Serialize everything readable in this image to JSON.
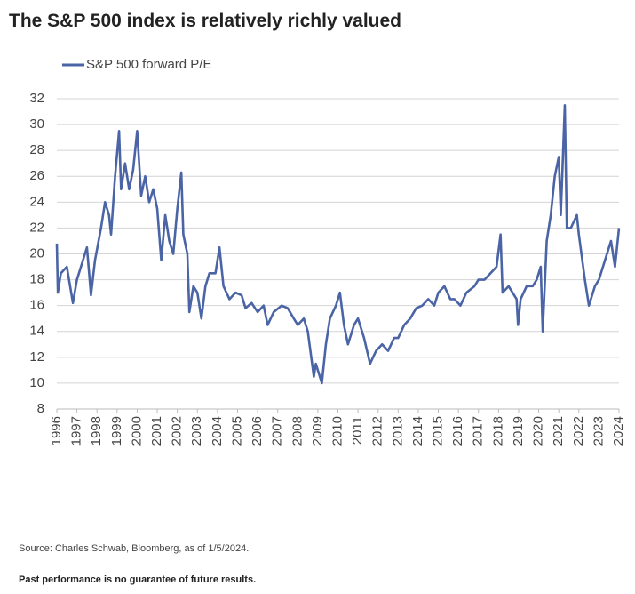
{
  "chart_data": {
    "type": "line",
    "title": "The S&P 500 index is relatively richly valued",
    "source": "Source: Charles Schwab, Bloomberg, as of 1/5/2024.",
    "footnote": "Past performance is no guarantee of future results.",
    "xlim": [
      1996,
      2024
    ],
    "xticks": [
      1996,
      1997,
      1998,
      1999,
      2000,
      2001,
      2002,
      2003,
      2004,
      2005,
      2006,
      2007,
      2008,
      2009,
      2010,
      2011,
      2012,
      2013,
      2014,
      2015,
      2016,
      2017,
      2018,
      2019,
      2020,
      2021,
      2022,
      2023,
      2024
    ],
    "ylim": [
      8,
      32
    ],
    "yticks": [
      8,
      10,
      12,
      14,
      16,
      18,
      20,
      22,
      24,
      26,
      28,
      30,
      32
    ],
    "grid": true,
    "legend": "top-left",
    "x": [
      1996.0,
      1996.05,
      1996.2,
      1996.5,
      1996.8,
      1997.0,
      1997.3,
      1997.5,
      1997.7,
      1997.9,
      1998.2,
      1998.4,
      1998.6,
      1998.7,
      1998.9,
      1999.1,
      1999.2,
      1999.4,
      1999.6,
      1999.8,
      2000.0,
      2000.2,
      2000.4,
      2000.6,
      2000.8,
      2001.0,
      2001.2,
      2001.4,
      2001.6,
      2001.8,
      2002.0,
      2002.2,
      2002.3,
      2002.5,
      2002.6,
      2002.8,
      2003.0,
      2003.2,
      2003.4,
      2003.6,
      2003.9,
      2004.1,
      2004.3,
      2004.6,
      2004.9,
      2005.2,
      2005.4,
      2005.7,
      2006.0,
      2006.3,
      2006.5,
      2006.8,
      2007.2,
      2007.5,
      2007.8,
      2008.0,
      2008.3,
      2008.5,
      2008.8,
      2008.9,
      2009.0,
      2009.2,
      2009.4,
      2009.6,
      2009.9,
      2010.1,
      2010.3,
      2010.5,
      2010.8,
      2011.0,
      2011.3,
      2011.6,
      2011.9,
      2012.2,
      2012.5,
      2012.8,
      2013.0,
      2013.3,
      2013.6,
      2013.9,
      2014.2,
      2014.5,
      2014.8,
      2015.0,
      2015.3,
      2015.6,
      2015.8,
      2016.1,
      2016.4,
      2016.8,
      2017.0,
      2017.3,
      2017.6,
      2017.9,
      2018.1,
      2018.2,
      2018.5,
      2018.9,
      2018.97,
      2019.1,
      2019.4,
      2019.7,
      2019.9,
      2020.1,
      2020.2,
      2020.4,
      2020.6,
      2020.8,
      2021.0,
      2021.1,
      2021.3,
      2021.4,
      2021.6,
      2021.9,
      2022.0,
      2022.3,
      2022.5,
      2022.8,
      2023.0,
      2023.3,
      2023.6,
      2023.8,
      2024.0
    ],
    "series": [
      {
        "name": "S&P 500 forward P/E",
        "color": "#4a64a5",
        "values": [
          20.8,
          17,
          18.5,
          19,
          16.2,
          18,
          19.5,
          20.5,
          16.8,
          19.5,
          22,
          24,
          23,
          21.5,
          26,
          29.5,
          25,
          27,
          25,
          26.5,
          29.5,
          24.5,
          26,
          24,
          25,
          23.5,
          19.5,
          23,
          21,
          20,
          23.5,
          26.3,
          21.5,
          20,
          15.5,
          17.5,
          17,
          15,
          17.5,
          18.5,
          18.5,
          20.5,
          17.5,
          16.5,
          17,
          16.8,
          15.8,
          16.2,
          15.5,
          16,
          14.5,
          15.5,
          16,
          15.8,
          15,
          14.5,
          15,
          14,
          10.5,
          11.5,
          11,
          10,
          13,
          15,
          16,
          17,
          14.5,
          13,
          14.5,
          15,
          13.5,
          11.5,
          12.5,
          13,
          12.5,
          13.5,
          13.5,
          14.5,
          15,
          15.8,
          16,
          16.5,
          16,
          17,
          17.5,
          16.5,
          16.5,
          16,
          17,
          17.5,
          18,
          18,
          18.5,
          19,
          21.5,
          17,
          17.5,
          16.5,
          14.5,
          16.5,
          17.5,
          17.5,
          18,
          19,
          14,
          21,
          23,
          26,
          27.5,
          23,
          31.5,
          22,
          22,
          23,
          21.5,
          18,
          16,
          17.5,
          18,
          19.5,
          21,
          19,
          22
        ]
      }
    ]
  }
}
